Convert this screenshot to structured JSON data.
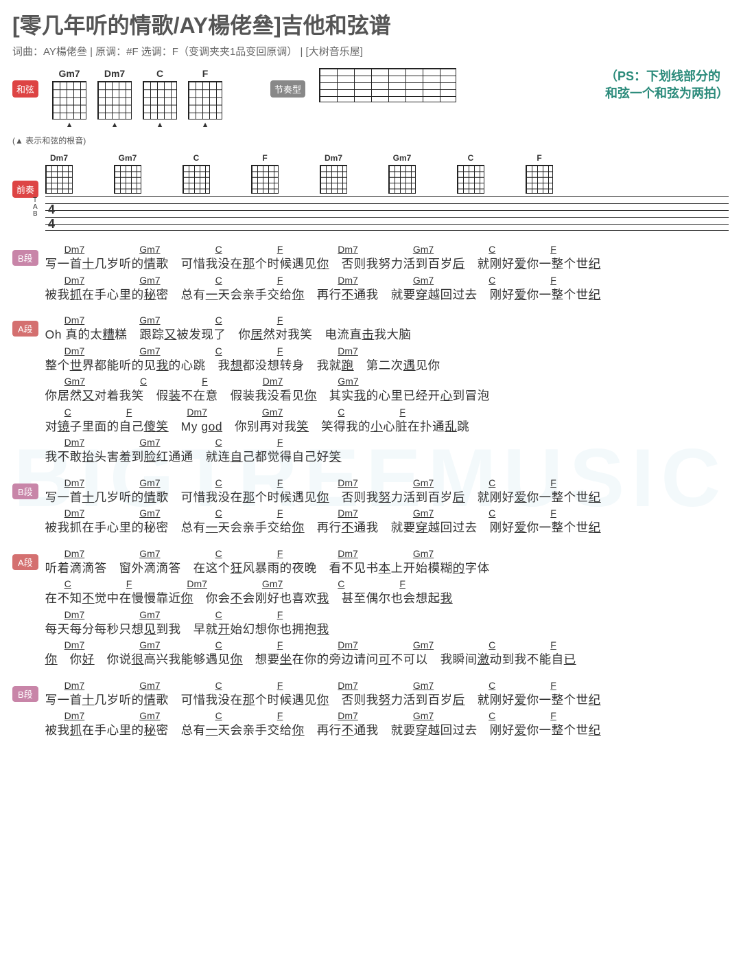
{
  "title": "[零几年听的情歌/AY楊佬叄]吉他和弦谱",
  "subtitle": "词曲：AY楊佬叄 | 原调：#F  选调：F（变调夹夹1品变回原调）  | [大树音乐屋]",
  "watermark": "BIGTREEMUSIC",
  "labels": {
    "hexian": "和弦",
    "jiezouxing": "节奏型",
    "qianzou": "前奏",
    "rootDesc": "(▲ 表示和弦的根音)"
  },
  "noteText": "（PS：下划线部分的\n和弦一个和弦为两拍）",
  "topChords": [
    "Gm7",
    "Dm7",
    "C",
    "F"
  ],
  "introChords": [
    "Dm7",
    "Gm7",
    "C",
    "F",
    "Dm7",
    "Gm7",
    "C",
    "F"
  ],
  "tabLabel": "T\nA\nB",
  "timeSig": "4\n4",
  "sections": [
    {
      "tag": "B段",
      "tagClass": "",
      "lines": [
        {
          "chords": [
            "Dm7",
            "Gm7",
            "C",
            "F",
            "Dm7",
            "Gm7",
            "C",
            "F"
          ],
          "lyric": "写一首<u>十</u>几岁听的<u>情</u>歌　可惜我没在<u>那</u>个时候遇见<u>你</u>　否则我努力活到百岁<u>后</u>　就刚好<u>爱</u>你一整个世<u>纪</u>"
        },
        {
          "chords": [
            "Dm7",
            "Gm7",
            "C",
            "F",
            "Dm7",
            "Gm7",
            "C",
            "F"
          ],
          "lyric": "被我<u>抓</u>在手心里的<u>秘</u>密　总有<u>一</u>天会亲手交给<u>你</u>　再行<u>不</u>通我　就要<u>穿</u>越回过去　刚好<u>爱</u>你一整个世<u>纪</u>"
        }
      ]
    },
    {
      "tag": "A段",
      "tagClass": "a",
      "lines": [
        {
          "chords": [
            "Dm7",
            "Gm7",
            "C",
            "F"
          ],
          "lyric": "Oh 真的太<u>糟</u>糕　跟踪<u>又</u>被发现了　你<u>居</u>然对我笑　电流直<u>击</u>我大脑"
        },
        {
          "chords": [
            "Dm7",
            "Gm7",
            "C",
            "F",
            "Dm7"
          ],
          "lyric": "整个<u>世</u>界都能听的见<u>我</u>的心跳　我<u>想</u>都没想转身　我就<u>跑</u>　第二次<u>遇</u>见你"
        },
        {
          "chords": [
            "Gm7",
            "C",
            "F",
            "Dm7",
            "Gm7"
          ],
          "lyric": "你居然<u>又</u>对着我笑　假<u>装</u>不在意　假装我没看见<u>你</u>　其实<u>我</u>的心里已经开<u>心</u>到冒泡"
        },
        {
          "chords": [
            "C",
            "F",
            "Dm7",
            "Gm7",
            "C",
            "F"
          ],
          "lyric": "对<u>镜</u>子里面的自己<u>傻笑</u>　My <u>god</u>　你别再对我<u>笑</u>　笑得我的<u>小</u>心脏在扑通<u>乱</u>跳"
        },
        {
          "chords": [
            "Dm7",
            "Gm7",
            "C",
            "F"
          ],
          "lyric": "我不敢<u>抬</u>头害羞到<u>脸</u>红通通　就连<u>自</u>己都觉得自己好<u>笑</u>"
        }
      ]
    },
    {
      "tag": "B段",
      "tagClass": "",
      "lines": [
        {
          "chords": [
            "Dm7",
            "Gm7",
            "C",
            "F",
            "Dm7",
            "Gm7",
            "C",
            "F"
          ],
          "lyric": "写一首<u>十</u>几岁听的<u>情</u>歌　可惜我没在<u>那</u>个时候遇见<u>你</u>　否则我<u>努</u>力活到百岁<u>后</u>　就刚好<u>爱</u>你一整个世<u>纪</u>"
        },
        {
          "chords": [
            "Dm7",
            "Gm7",
            "C",
            "F",
            "Dm7",
            "Gm7",
            "C",
            "F"
          ],
          "lyric": "被我抓在手心里的秘密　总有<u>一</u>天会亲手交给<u>你</u>　再行<u>不</u>通我　就要<u>穿</u>越回过去　刚好<u>爱</u>你一整个世<u>纪</u>"
        }
      ]
    },
    {
      "tag": "A段",
      "tagClass": "a",
      "lines": [
        {
          "chords": [
            "Dm7",
            "Gm7",
            "C",
            "F",
            "Dm7",
            "Gm7"
          ],
          "lyric": "听着滴滴答　窗外滴滴答　在这个<u>狂</u>风暴雨的夜晚　看不见书<u>本</u>上开始模糊<u>的</u>字体"
        },
        {
          "chords": [
            "C",
            "F",
            "Dm7",
            "Gm7",
            "C",
            "F"
          ],
          "lyric": "在不知<u>不</u>觉中在慢慢靠近<u>你</u>　你会<u>不</u>会刚好也喜欢<u>我</u>　甚至偶尔也会想起<u>我</u>"
        },
        {
          "chords": [
            "Dm7",
            "Gm7",
            "C",
            "F"
          ],
          "lyric": "每天每分每秒只想<u>见</u>到我　早就<u>开</u>始幻想你也拥抱<u>我</u>"
        },
        {
          "chords": [
            "Dm7",
            "Gm7",
            "C",
            "F",
            "Dm7",
            "Gm7",
            "C",
            "F"
          ],
          "lyric": "<u>你</u>　你<u>好</u>　你说<u>很</u>高兴我能够遇见<u>你</u>　想要<u>坐</u>在你的旁边请问<u>可</u>不可以　我瞬间<u>激</u>动到我不能自<u>已</u>"
        }
      ]
    },
    {
      "tag": "B段",
      "tagClass": "",
      "lines": [
        {
          "chords": [
            "Dm7",
            "Gm7",
            "C",
            "F",
            "Dm7",
            "Gm7",
            "C",
            "F"
          ],
          "lyric": "写一首<u>十</u>几岁听的<u>情</u>歌　可惜我没在<u>那</u>个时候遇见<u>你</u>　否则我<u>努</u>力活到百岁<u>后</u>　就刚好<u>爱</u>你一整个世<u>纪</u>"
        },
        {
          "chords": [
            "Dm7",
            "Gm7",
            "C",
            "F",
            "Dm7",
            "Gm7",
            "C",
            "F"
          ],
          "lyric": "被我<u>抓</u>在手心里的<u>秘</u>密　总有<u>一</u>天会亲手交给<u>你</u>　再行<u>不</u>通我　就要<u>穿</u>越回过去　刚好<u>爱</u>你一整个世<u>纪</u>"
        }
      ]
    }
  ]
}
